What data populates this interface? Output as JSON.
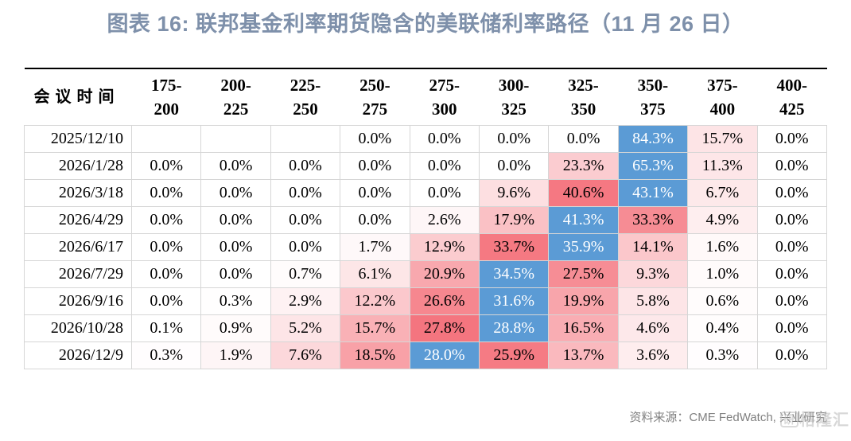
{
  "title": "图表 16: 联邦基金利率期货隐含的美联储利率路径（11 月 26 日）",
  "footer": {
    "source": "资料来源：CME FedWatch, 兴业研究",
    "watermark_text": "格隆汇",
    "watermark_box": "研"
  },
  "colors": {
    "title": "#7E90AA",
    "max_cell_blue": "#5B9BD5",
    "heat_red": "#F4707A",
    "grid_border": "#D6D6D6",
    "header_rule": "#000000",
    "footer_gray": "#808080"
  },
  "chart_data": {
    "type": "heatmap",
    "title": "图表 16: 联邦基金利率期货隐含的美联储利率路径（11 月 26 日）",
    "row_header_label": "会议时间",
    "value_unit": "%",
    "columns": [
      "175-200",
      "200-225",
      "225-250",
      "250-275",
      "275-300",
      "300-325",
      "325-350",
      "350-375",
      "375-400",
      "400-425"
    ],
    "rows": [
      "2025/12/10",
      "2026/1/28",
      "2026/3/18",
      "2026/4/29",
      "2026/6/17",
      "2026/7/29",
      "2026/9/16",
      "2026/10/28",
      "2026/12/9"
    ],
    "values": [
      [
        null,
        null,
        null,
        0.0,
        0.0,
        0.0,
        0.0,
        84.3,
        15.7,
        0.0
      ],
      [
        0.0,
        0.0,
        0.0,
        0.0,
        0.0,
        0.0,
        23.3,
        65.3,
        11.3,
        0.0
      ],
      [
        0.0,
        0.0,
        0.0,
        0.0,
        0.0,
        9.6,
        40.6,
        43.1,
        6.7,
        0.0
      ],
      [
        0.0,
        0.0,
        0.0,
        0.0,
        2.6,
        17.9,
        41.3,
        33.3,
        4.9,
        0.0
      ],
      [
        0.0,
        0.0,
        0.0,
        1.7,
        12.9,
        33.7,
        35.9,
        14.1,
        1.6,
        0.0
      ],
      [
        0.0,
        0.0,
        0.7,
        6.1,
        20.9,
        34.5,
        27.5,
        9.3,
        1.0,
        0.0
      ],
      [
        0.0,
        0.3,
        2.9,
        12.2,
        26.6,
        31.6,
        19.9,
        5.8,
        0.6,
        0.0
      ],
      [
        0.1,
        0.9,
        5.2,
        15.7,
        27.8,
        28.8,
        16.5,
        4.6,
        0.4,
        0.0
      ],
      [
        0.3,
        1.9,
        7.6,
        18.5,
        28.0,
        25.9,
        13.7,
        3.6,
        0.3,
        0.0
      ]
    ],
    "color_rule": "row maximum = blue with white text; other cells shaded white-to-red proportional to value / row maximum",
    "legend_position": "none",
    "grid": true
  }
}
